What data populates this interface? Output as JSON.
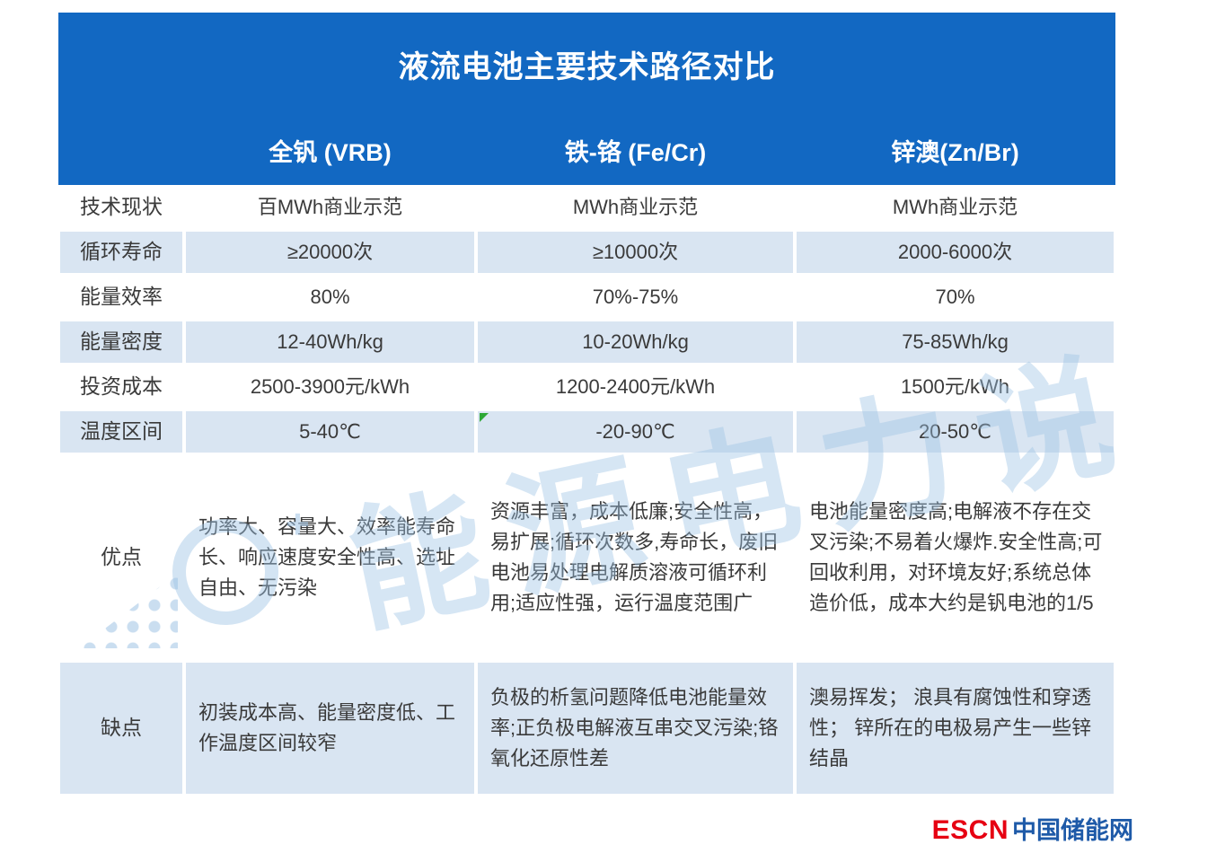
{
  "chart_data": {
    "type": "table",
    "title": "液流电池主要技术路径对比",
    "columns": [
      "全钒 (VRB)",
      "铁-铬 (Fe/Cr)",
      "锌澳(Zn/Br)"
    ],
    "rows": [
      {
        "label": "技术现状",
        "values": [
          "百MWh商业示范",
          "MWh商业示范",
          "MWh商业示范"
        ]
      },
      {
        "label": "循环寿命",
        "values": [
          "≥20000次",
          "≥10000次",
          "2000-6000次"
        ]
      },
      {
        "label": "能量效率",
        "values": [
          "80%",
          "70%-75%",
          "70%"
        ]
      },
      {
        "label": "能量密度",
        "values": [
          "12-40Wh/kg",
          "10-20Wh/kg",
          "75-85Wh/kg"
        ]
      },
      {
        "label": "投资成本",
        "values": [
          "2500-3900元/kWh",
          "1200-2400元/kWh",
          "1500元/kWh"
        ]
      },
      {
        "label": "温度区间",
        "values": [
          "5-40℃",
          "-20-90℃",
          "20-50℃"
        ]
      },
      {
        "label": "优点",
        "values": [
          "功率大、容量大、效率能寿命长、响应速度安全性高、选址自由、无污染",
          "资源丰富，成本低廉;安全性高，易扩展;循环次数多,寿命长，废旧电池易处理电解质溶液可循环利用;适应性强，运行温度范围广",
          "电池能量密度高;电解液不存在交叉污染;不易着火爆炸.安全性高;可回收利用，对环境友好;系统总体造价低，成本大约是钒电池的1/5"
        ]
      },
      {
        "label": "缺点",
        "values": [
          "初装成本高、能量密度低、工作温度区间较窄",
          "负极的析氢问题降低电池能量效率;正负极电解液互串交叉污染;铬氧化还原性差",
          "澳易挥发； 浪具有腐蚀性和穿透性； 锌所在的电极易产生一些锌结晶"
        ]
      }
    ],
    "layout": {
      "stripe_rows": [
        1,
        3,
        5,
        7
      ],
      "header_position": "top"
    }
  },
  "watermark": {
    "text": "能源电力说",
    "plus": "+"
  },
  "footer": {
    "escn": "ESCN",
    "site": "中国储能网"
  },
  "colors": {
    "header_blue": "#1268C2",
    "stripe_blue": "#D9E5F2",
    "body_text": "#3A3A3A",
    "escn_red": "#E60012",
    "escn_blue": "#1E5AA8",
    "watermark_blue": "#9EC3E4",
    "marker_green": "#2EA836"
  }
}
